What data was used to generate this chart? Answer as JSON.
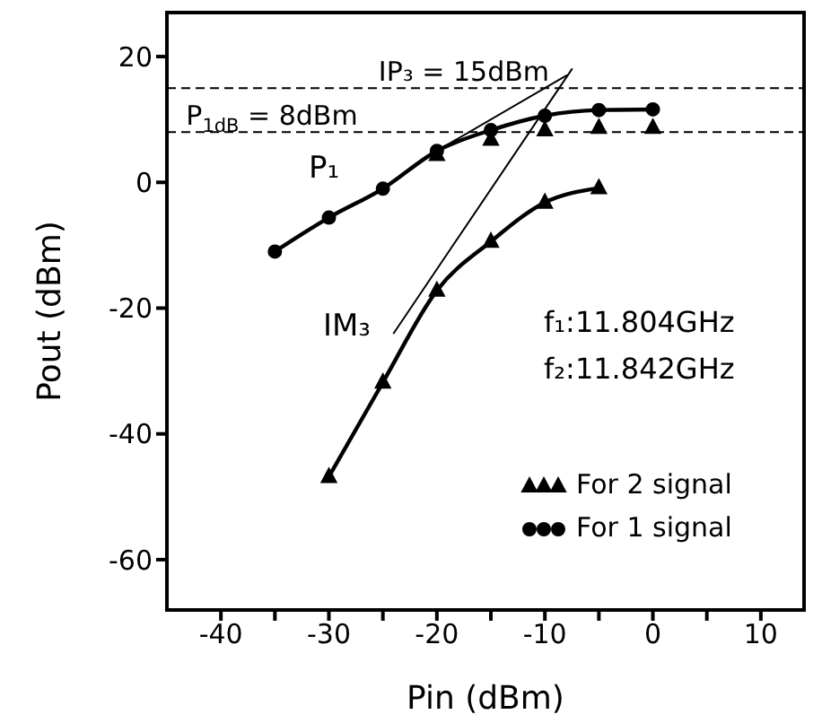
{
  "chart_data": {
    "type": "line",
    "xlabel": "Pin (dBm)",
    "ylabel": "Pout (dBm)",
    "xlim": [
      -45,
      14
    ],
    "ylim": [
      -68,
      27
    ],
    "xticks": [
      -40,
      {
        "value": -35,
        "label": null
      },
      -30,
      {
        "value": -25,
        "label": null
      },
      -20,
      {
        "value": -15,
        "label": null
      },
      -10,
      {
        "value": -5,
        "label": null
      },
      0,
      {
        "value": 5,
        "label": null
      },
      10
    ],
    "yticks": [
      -60,
      -40,
      -20,
      0,
      20
    ],
    "legend": "bottom right",
    "series": [
      {
        "name": "For 2 signal",
        "type": "scatter",
        "marker": "triangle",
        "color": "#000000",
        "x": [
          -20,
          -15,
          -10,
          -5,
          0
        ],
        "values": [
          4.4,
          6.8,
          8.3,
          8.7,
          8.7
        ]
      },
      {
        "name": "For 1 signal",
        "marker": "circle",
        "color": "#000000",
        "x": [
          -35,
          -30,
          -25,
          -20,
          -15,
          -10,
          -5,
          0
        ],
        "values": [
          -11,
          -5.6,
          -1,
          5,
          8.3,
          10.6,
          11.5,
          11.6
        ]
      },
      {
        "marker": "triangle",
        "color": "#000000",
        "x": [
          -30,
          -25,
          -20,
          -15,
          -10,
          -5
        ],
        "values": [
          -46.8,
          -31.8,
          -17.2,
          -9.4,
          -3.2,
          -0.9
        ]
      },
      {
        "marker": "none",
        "color": "#000000",
        "x": [
          -20,
          -8
        ],
        "values": [
          5,
          17
        ]
      },
      {
        "marker": "none",
        "color": "#000000",
        "x": [
          -24,
          -7.5
        ],
        "values": [
          -24,
          18
        ]
      }
    ],
    "ref_lines": [
      {
        "axis": "y",
        "value": 15,
        "label": "IP₃ = 15dBm",
        "line_style": "dashed",
        "color": "#000000"
      },
      {
        "axis": "y",
        "value": 8,
        "label": "P$_{1dB}$ = 8dBm",
        "line_style": "dashed",
        "color": "#000000"
      }
    ],
    "annotations": [
      "P₁",
      "IM₃",
      "f₁:11.804GHz",
      "f₂:11.842GHz"
    ]
  }
}
